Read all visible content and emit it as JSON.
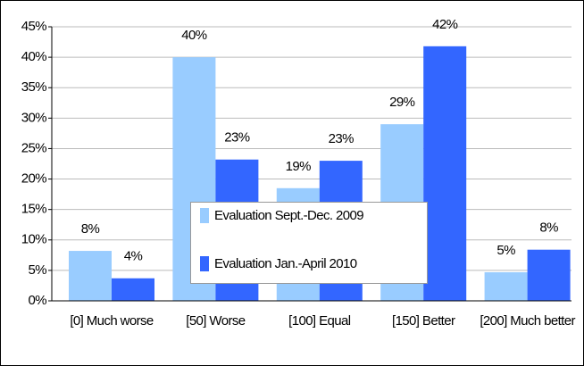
{
  "chart_data": {
    "type": "bar",
    "categories": [
      "[0] Much worse",
      "[50] Worse",
      "[100] Equal",
      "[150] Better",
      "[200] Much better"
    ],
    "series": [
      {
        "name": "Evaluation Sept.-Dec. 2009",
        "color": "#99ccff",
        "values": [
          8.2,
          40,
          18.5,
          29,
          4.7
        ],
        "value_labels": [
          "8%",
          "40%",
          "19%",
          "29%",
          "5%"
        ]
      },
      {
        "name": "Evaluation Jan.-April 2010",
        "color": "#3366ff",
        "values": [
          3.7,
          23.2,
          23,
          41.8,
          8.4
        ],
        "value_labels": [
          "4%",
          "23%",
          "23%",
          "42%",
          "8%"
        ]
      }
    ],
    "ylim": [
      0,
      45
    ],
    "yticks": [
      {
        "value": 0,
        "label": "0%"
      },
      {
        "value": 5,
        "label": "5%"
      },
      {
        "value": 10,
        "label": "10%"
      },
      {
        "value": 15,
        "label": "15%"
      },
      {
        "value": 20,
        "label": "20%"
      },
      {
        "value": 25,
        "label": "25%"
      },
      {
        "value": 30,
        "label": "30%"
      },
      {
        "value": 35,
        "label": "35%"
      },
      {
        "value": 40,
        "label": "40%"
      },
      {
        "value": 45,
        "label": "45%"
      }
    ],
    "grid": true
  }
}
